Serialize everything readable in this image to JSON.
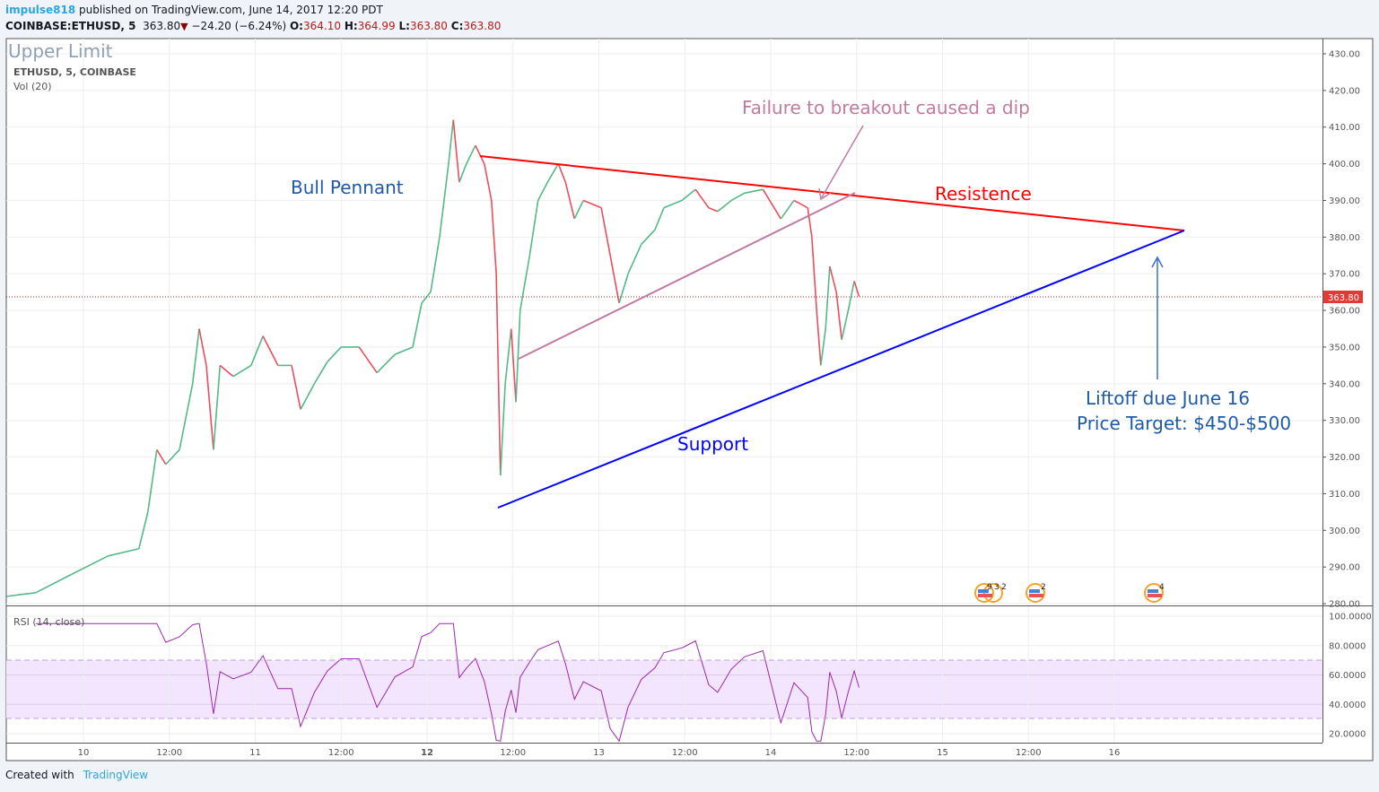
{
  "header": {
    "author": "impulse818",
    "published": "published on TradingView.com, June 14, 2017 12:20 PDT",
    "symbol": "COINBASE:ETHUSD, 5",
    "last": "363.80",
    "change": "−24.20 (−6.24%)",
    "o_label": "O:",
    "o": "364.10",
    "h_label": "H:",
    "h": "364.99",
    "l_label": "L:",
    "l": "363.80",
    "c_label": "C:",
    "c": "363.80"
  },
  "pane": {
    "watermark": "Upper Limit",
    "legend": "ETHUSD, 5, COINBASE",
    "volume_label": "Vol (20)",
    "rsi_label": "RSI (14, close)",
    "price_tag": "363.80"
  },
  "annotations": {
    "bull_pennant": "Bull Pennant",
    "failure": "Failure to breakout caused a dip",
    "resistance": "Resistence",
    "support": "Support",
    "liftoff": "Liftoff due June 16",
    "target": "Price Target: $450-$500"
  },
  "events": [
    "9",
    "3",
    "2",
    "2",
    "4"
  ],
  "footer": {
    "created": "Created with",
    "brand": "TradingView"
  },
  "colors": {
    "up": "#53b987",
    "down": "#eb4d5c",
    "resistance": "#ff0000",
    "support": "#0000ff",
    "pennant": "#c27ba0",
    "label_blue": "#1e5aa8",
    "rsi": "#9c27b0",
    "rsi_band": "#f3e5fd"
  },
  "chart_data": {
    "type": "line",
    "symbol": "COINBASE:ETHUSD",
    "interval": "5",
    "price_ticks": [
      430,
      420,
      410,
      400,
      390,
      380,
      370,
      360,
      350,
      340,
      330,
      320,
      310,
      300,
      290,
      280
    ],
    "ylim": [
      280,
      430
    ],
    "rsi_ticks": [
      "100.0000",
      "80.0000",
      "60.0000",
      "40.0000",
      "20.0000"
    ],
    "rsi_bands": [
      30,
      70
    ],
    "time_ticks": [
      {
        "t": "2017-06-10 00:00",
        "label": "10",
        "bold": false
      },
      {
        "t": "2017-06-10 12:00",
        "label": "12:00",
        "bold": false
      },
      {
        "t": "2017-06-11 00:00",
        "label": "11",
        "bold": false
      },
      {
        "t": "2017-06-11 12:00",
        "label": "12:00",
        "bold": false
      },
      {
        "t": "2017-06-12 00:00",
        "label": "12",
        "bold": true
      },
      {
        "t": "2017-06-12 12:00",
        "label": "12:00",
        "bold": false
      },
      {
        "t": "2017-06-13 00:00",
        "label": "13",
        "bold": false
      },
      {
        "t": "2017-06-13 12:00",
        "label": "12:00",
        "bold": false
      },
      {
        "t": "2017-06-14 00:00",
        "label": "14",
        "bold": false
      },
      {
        "t": "2017-06-14 12:00",
        "label": "12:00",
        "bold": false
      },
      {
        "t": "2017-06-15 00:00",
        "label": "15",
        "bold": false
      },
      {
        "t": "2017-06-15 12:00",
        "label": "12:00",
        "bold": false
      },
      {
        "t": "2017-06-16 00:00",
        "label": "16",
        "bold": false
      }
    ],
    "prices": [
      [
        "2017-06-09 13:15",
        282
      ],
      [
        "2017-06-09 17:20",
        283
      ],
      [
        "2017-06-09 22:20",
        288
      ],
      [
        "2017-06-10 03:25",
        293
      ],
      [
        "2017-06-10 07:45",
        295
      ],
      [
        "2017-06-10 09:00",
        305
      ],
      [
        "2017-06-10 10:15",
        322
      ],
      [
        "2017-06-10 11:30",
        318
      ],
      [
        "2017-06-10 13:25",
        322
      ],
      [
        "2017-06-10 15:15",
        340
      ],
      [
        "2017-06-10 16:10",
        355
      ],
      [
        "2017-06-10 17:10",
        345
      ],
      [
        "2017-06-10 18:10",
        322
      ],
      [
        "2017-06-10 19:05",
        345
      ],
      [
        "2017-06-10 20:55",
        342
      ],
      [
        "2017-06-10 23:25",
        345
      ],
      [
        "2017-06-11 01:05",
        353
      ],
      [
        "2017-06-11 03:10",
        345
      ],
      [
        "2017-06-11 05:05",
        345
      ],
      [
        "2017-06-11 06:20",
        333
      ],
      [
        "2017-06-11 08:15",
        340
      ],
      [
        "2017-06-11 10:05",
        346
      ],
      [
        "2017-06-11 12:00",
        350
      ],
      [
        "2017-06-11 14:30",
        350
      ],
      [
        "2017-06-11 17:00",
        343
      ],
      [
        "2017-06-11 19:30",
        348
      ],
      [
        "2017-06-11 22:00",
        350
      ],
      [
        "2017-06-11 23:15",
        362
      ],
      [
        "2017-06-12 00:30",
        365
      ],
      [
        "2017-06-12 01:45",
        380
      ],
      [
        "2017-06-12 03:00",
        400
      ],
      [
        "2017-06-12 03:40",
        412
      ],
      [
        "2017-06-12 04:30",
        395
      ],
      [
        "2017-06-12 05:30",
        400
      ],
      [
        "2017-06-12 06:45",
        405
      ],
      [
        "2017-06-12 08:00",
        400
      ],
      [
        "2017-06-12 09:00",
        390
      ],
      [
        "2017-06-12 09:40",
        370
      ],
      [
        "2017-06-12 10:15",
        315
      ],
      [
        "2017-06-12 10:55",
        340
      ],
      [
        "2017-06-12 11:45",
        355
      ],
      [
        "2017-06-12 12:25",
        335
      ],
      [
        "2017-06-12 13:00",
        360
      ],
      [
        "2017-06-12 14:20",
        375
      ],
      [
        "2017-06-12 15:30",
        390
      ],
      [
        "2017-06-12 16:50",
        395
      ],
      [
        "2017-06-12 18:20",
        400
      ],
      [
        "2017-06-12 19:20",
        395
      ],
      [
        "2017-06-12 20:35",
        385
      ],
      [
        "2017-06-12 21:50",
        390
      ],
      [
        "2017-06-13 00:20",
        388
      ],
      [
        "2017-06-13 01:35",
        375
      ],
      [
        "2017-06-13 02:50",
        362
      ],
      [
        "2017-06-13 04:05",
        370
      ],
      [
        "2017-06-13 05:55",
        378
      ],
      [
        "2017-06-13 07:50",
        382
      ],
      [
        "2017-06-13 09:05",
        388
      ],
      [
        "2017-06-13 11:35",
        390
      ],
      [
        "2017-06-13 13:30",
        393
      ],
      [
        "2017-06-13 15:20",
        388
      ],
      [
        "2017-06-13 16:35",
        387
      ],
      [
        "2017-06-13 18:30",
        390
      ],
      [
        "2017-06-13 20:20",
        392
      ],
      [
        "2017-06-13 22:55",
        393
      ],
      [
        "2017-06-14 01:25",
        385
      ],
      [
        "2017-06-14 03:15",
        390
      ],
      [
        "2017-06-14 05:10",
        388
      ],
      [
        "2017-06-14 05:45",
        380
      ],
      [
        "2017-06-14 06:25",
        360
      ],
      [
        "2017-06-14 07:00",
        345
      ],
      [
        "2017-06-14 07:40",
        355
      ],
      [
        "2017-06-14 08:15",
        372
      ],
      [
        "2017-06-14 09:10",
        365
      ],
      [
        "2017-06-14 09:55",
        352
      ],
      [
        "2017-06-14 10:50",
        360
      ],
      [
        "2017-06-14 11:40",
        368
      ],
      [
        "2017-06-14 12:20",
        363.8
      ]
    ]
  }
}
